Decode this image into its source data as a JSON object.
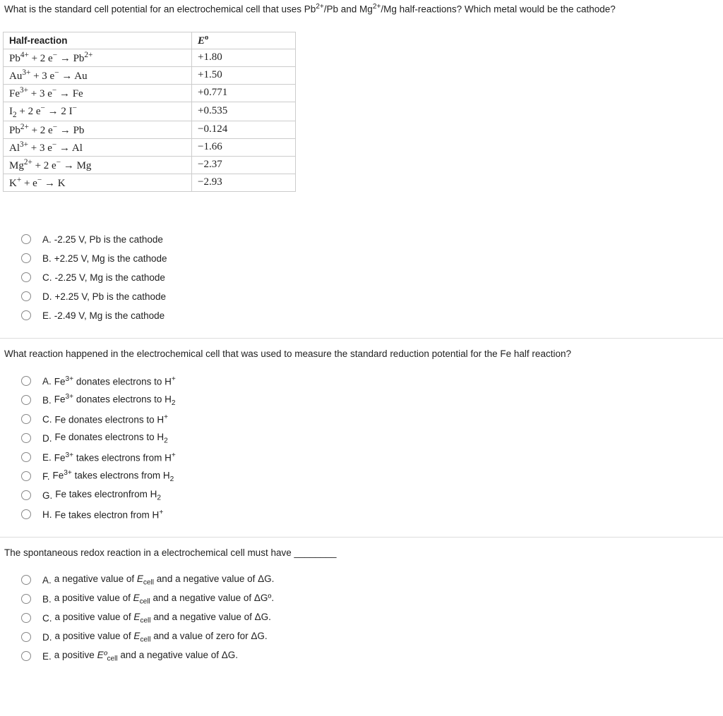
{
  "q1": {
    "text_parts": [
      "What is the standard cell potential for an electrochemical cell that uses Pb",
      "2+",
      "/Pb and Mg",
      "2+",
      "/Mg half-reactions? Which metal would be the cathode?"
    ],
    "table": {
      "headers": {
        "reaction": "Half-reaction",
        "e": "E",
        "e_sup": "o"
      },
      "rows": [
        {
          "r": [
            "Pb",
            "4+",
            " + 2 e",
            "−",
            " → Pb",
            "2+"
          ],
          "e": "+1.80"
        },
        {
          "r": [
            "Au",
            "3+",
            " + 3 e",
            "−",
            " → Au",
            ""
          ],
          "e": "+1.50"
        },
        {
          "r": [
            "Fe",
            "3+",
            " + 3 e",
            "−",
            " → Fe",
            ""
          ],
          "e": "+0.771"
        },
        {
          "r": [
            "I",
            "2",
            " + 2 e",
            "−",
            " → 2 I",
            "−"
          ],
          "e": "+0.535",
          "firstSub": true
        },
        {
          "r": [
            "Pb",
            "2+",
            " + 2 e",
            "−",
            " → Pb",
            ""
          ],
          "e": "−0.124"
        },
        {
          "r": [
            "Al",
            "3+",
            " + 3 e",
            "−",
            " → Al",
            ""
          ],
          "e": "−1.66"
        },
        {
          "r": [
            "Mg",
            "2+",
            " + 2 e",
            "−",
            " → Mg",
            ""
          ],
          "e": "−2.37"
        },
        {
          "r": [
            "K",
            "+",
            " + e",
            "−",
            " → K",
            ""
          ],
          "e": "−2.93"
        }
      ]
    },
    "options": [
      {
        "letter": "A.",
        "html": "-2.25 V, Pb is the cathode"
      },
      {
        "letter": "B.",
        "html": "+2.25 V, Mg is the cathode"
      },
      {
        "letter": "C.",
        "html": "-2.25 V, Mg is the cathode"
      },
      {
        "letter": "D.",
        "html": "+2.25 V, Pb is the cathode"
      },
      {
        "letter": "E.",
        "html": "-2.49 V, Mg is the cathode"
      }
    ]
  },
  "q2": {
    "text": "What reaction happened in the electrochemical cell that was used to measure the standard reduction potential for the Fe half reaction?",
    "options": [
      {
        "letter": "A.",
        "parts": [
          "Fe",
          "3+",
          " donates electrons to H",
          "+"
        ]
      },
      {
        "letter": "B.",
        "parts": [
          "Fe",
          "3+",
          " donates electrons to H",
          "2"
        ],
        "lastSub": true
      },
      {
        "letter": "C.",
        "parts": [
          "Fe donates electrons to H",
          "+",
          "",
          ""
        ]
      },
      {
        "letter": "D.",
        "parts": [
          "Fe donates electrons to H",
          "2",
          "",
          ""
        ],
        "firstSupIsSub": true
      },
      {
        "letter": "E.",
        "parts": [
          "Fe",
          "3+",
          " takes electrons from H",
          "+"
        ]
      },
      {
        "letter": "F.",
        "parts": [
          "Fe",
          "3+",
          " takes electrons from H",
          "2"
        ],
        "lastSub": true
      },
      {
        "letter": "G.",
        "parts": [
          "Fe takes electronfrom H",
          "2",
          "",
          ""
        ],
        "firstSupIsSub": true
      },
      {
        "letter": "H.",
        "parts": [
          "Fe takes electron from H",
          "+",
          "",
          ""
        ]
      }
    ]
  },
  "q3": {
    "text": "The spontaneous redox reaction in a electrochemical cell must have ________",
    "options": [
      {
        "letter": "A.",
        "parts": [
          "a negative value of ",
          "E",
          "cell",
          " and a negative value of ΔG."
        ]
      },
      {
        "letter": "B.",
        "parts": [
          "a positive value of ",
          "E",
          "cell",
          " and a negative value of ΔGº."
        ]
      },
      {
        "letter": "C.",
        "parts": [
          "a positive value of ",
          "E",
          "cell",
          " and a negative value of ΔG."
        ]
      },
      {
        "letter": "D.",
        "parts": [
          "a positive value of ",
          "E",
          "cell",
          " and a value of zero for ΔG."
        ]
      },
      {
        "letter": "E.",
        "parts": [
          "a positive ",
          "Eº",
          "cell",
          " and a negative value of ΔG."
        ]
      }
    ]
  }
}
